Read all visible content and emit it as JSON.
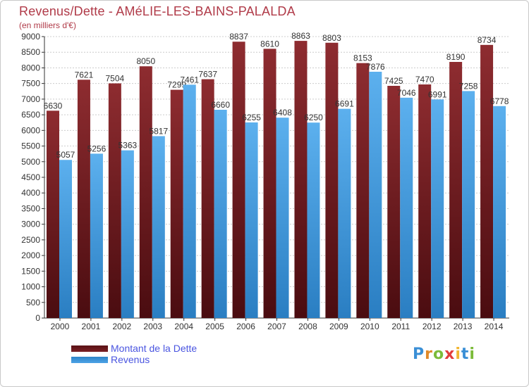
{
  "header": {
    "title": "Revenus/Dette - AMéLIE-LES-BAINS-PALALDA",
    "subtitle": "(en milliers d'€)"
  },
  "colors": {
    "debt": "#7a1f23",
    "debt_light": "#8e2c30",
    "revenue": "#4da3e6",
    "revenue_light": "#5cb0ee",
    "axis": "#333333",
    "grid": "#cccccc",
    "label": "#333333",
    "title": "#b03a48",
    "legend_text": "#4a55e0"
  },
  "legend": {
    "items": [
      {
        "label": "Montant de la Dette",
        "color": "#7a1f23"
      },
      {
        "label": "Revenus",
        "color": "#4da3e6"
      }
    ]
  },
  "logo": {
    "letters": [
      {
        "ch": "P",
        "color": "#3a8fd6"
      },
      {
        "ch": "r",
        "color": "#e08a2a"
      },
      {
        "ch": "o",
        "color": "#7cbb3a"
      },
      {
        "ch": "x",
        "color": "#e23b3b"
      },
      {
        "ch": "i",
        "color": "#f2b632"
      },
      {
        "ch": "t",
        "color": "#3a8fd6"
      },
      {
        "ch": "i",
        "color": "#7cbb3a"
      }
    ]
  },
  "chart_data": {
    "type": "bar",
    "categories": [
      "2000",
      "2001",
      "2002",
      "2003",
      "2004",
      "2005",
      "2006",
      "2007",
      "2008",
      "2009",
      "2010",
      "2011",
      "2012",
      "2013",
      "2014"
    ],
    "series": [
      {
        "name": "Montant de la Dette",
        "values": [
          6630,
          7621,
          7504,
          8050,
          7299,
          7637,
          8837,
          8610,
          8863,
          8803,
          8153,
          7425,
          7470,
          8190,
          8734
        ]
      },
      {
        "name": "Revenus",
        "values": [
          5057,
          5256,
          5363,
          5817,
          7461,
          6660,
          6255,
          6408,
          6250,
          6691,
          7876,
          7046,
          6991,
          7258,
          6778
        ]
      }
    ],
    "title": "Revenus/Dette - AMéLIE-LES-BAINS-PALALDA",
    "ylabel": "(en milliers d'€)",
    "ylim": [
      0,
      9000
    ],
    "ytick_step": 500,
    "grid": true,
    "legend_position": "bottom-left"
  }
}
